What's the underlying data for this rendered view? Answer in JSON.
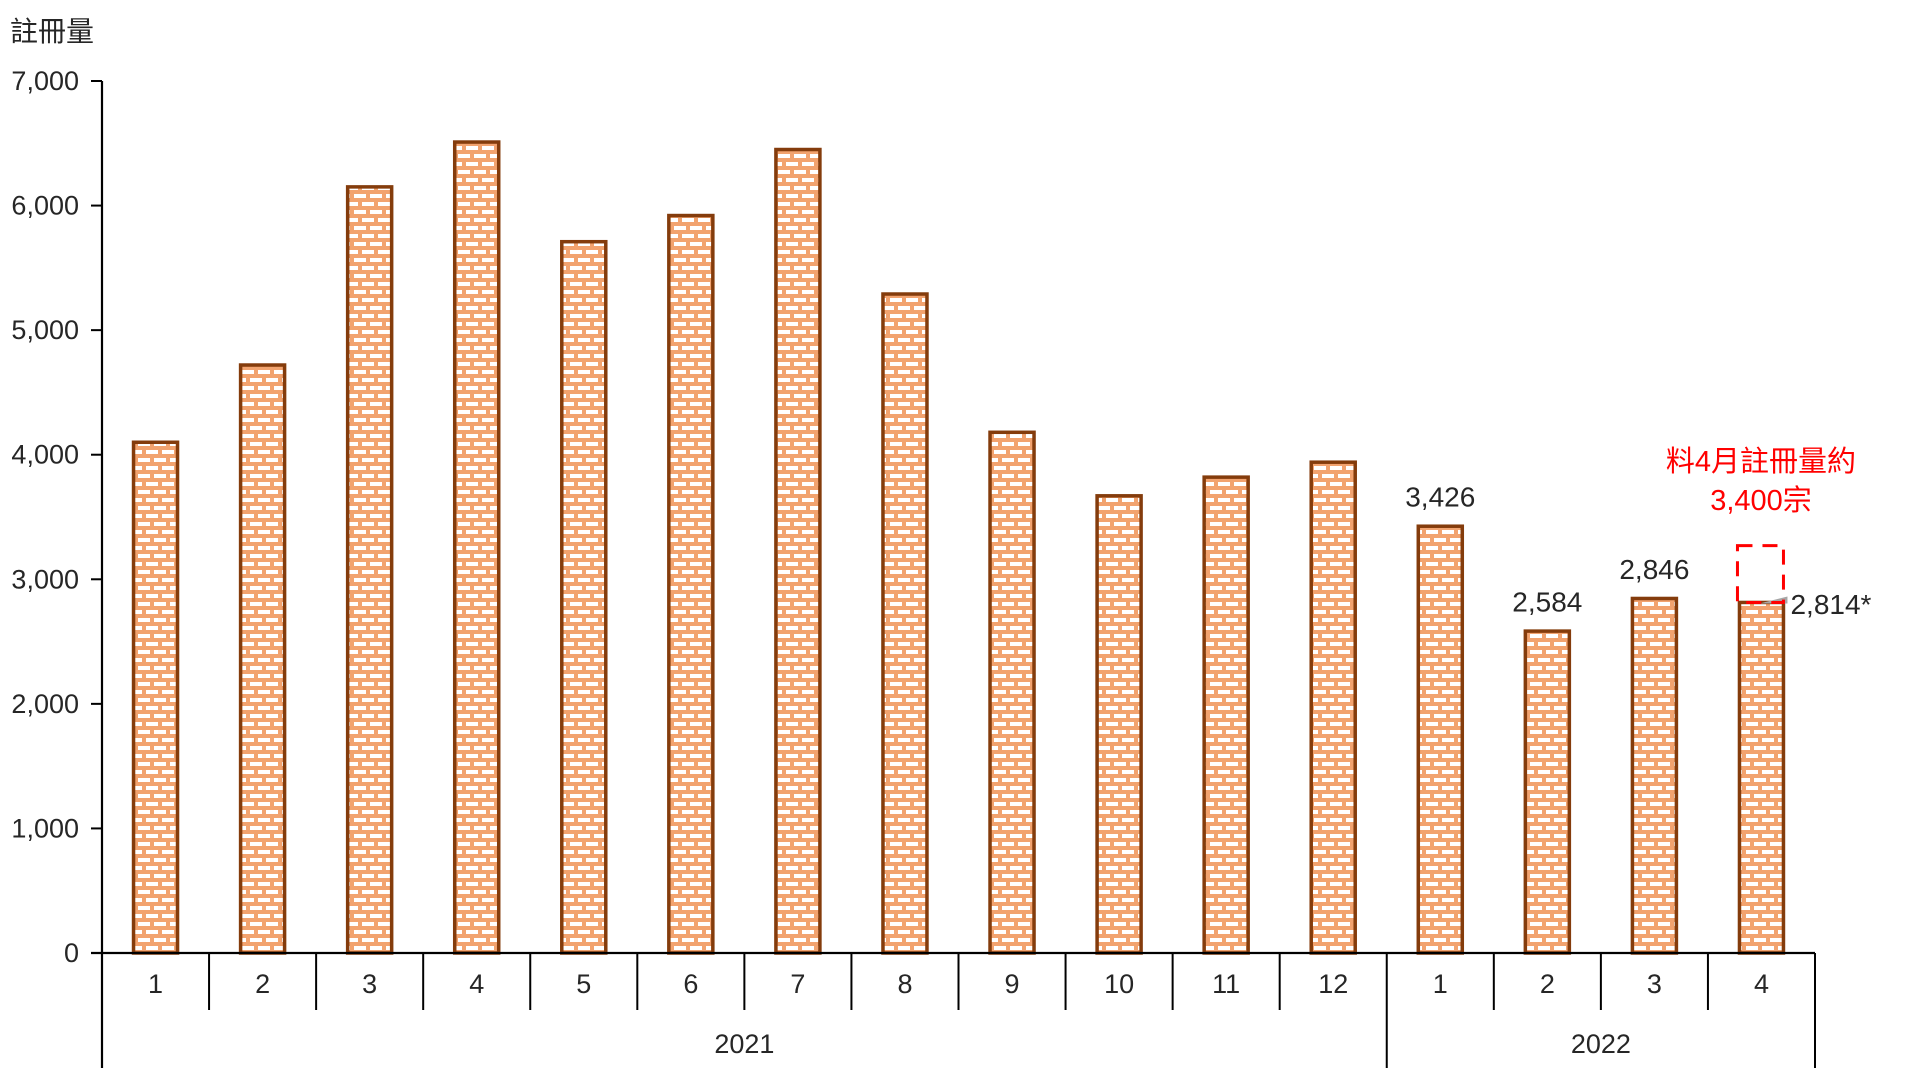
{
  "title": "註冊量",
  "annotation": {
    "line1": "料4月註冊量約",
    "line2": "3,400宗"
  },
  "colors": {
    "bar_border": "#843C0C",
    "brick_line": "#F2A36F",
    "bar_fill_bg": "#FFFFFF",
    "projection_red": "#FF0000",
    "text": "#262626",
    "axis": "#000000",
    "shadow_gray": "#A6A6A6"
  },
  "chart_data": {
    "type": "bar",
    "title": "註冊量",
    "ylabel": "註冊量",
    "xlabel": "",
    "ylim": [
      0,
      7000
    ],
    "ytick_step": 1000,
    "ytick_labels": [
      "0",
      "1,000",
      "2,000",
      "3,000",
      "4,000",
      "5,000",
      "6,000",
      "7,000"
    ],
    "grid": false,
    "legend": false,
    "groups": [
      {
        "year": "2021",
        "months": [
          "1",
          "2",
          "3",
          "4",
          "5",
          "6",
          "7",
          "8",
          "9",
          "10",
          "11",
          "12"
        ],
        "values": [
          4100,
          4720,
          6150,
          6510,
          5710,
          5920,
          6450,
          5290,
          4180,
          3670,
          3820,
          3940
        ]
      },
      {
        "year": "2022",
        "months": [
          "1",
          "2",
          "3",
          "4"
        ],
        "values": [
          3426,
          2584,
          2846,
          2814
        ],
        "labels": [
          "3,426",
          "2,584",
          "2,846",
          "2,814*"
        ]
      }
    ],
    "projection": {
      "month": "2022-4",
      "projected_value": 3400,
      "box_top_value": 3270,
      "box_bottom_value": 2814
    }
  }
}
